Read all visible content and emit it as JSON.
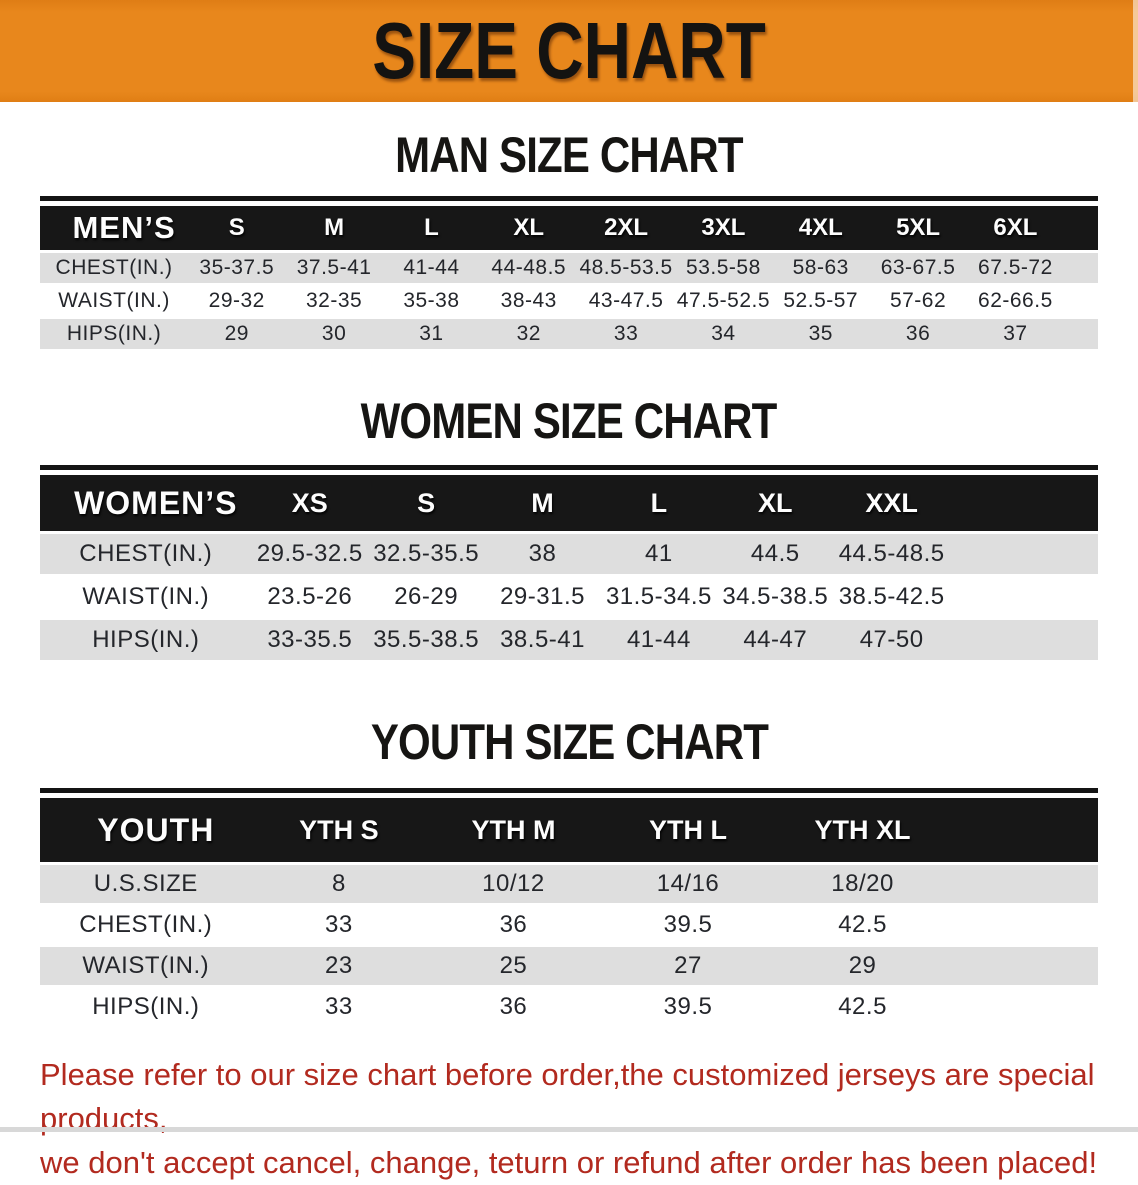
{
  "banner": {
    "title": "SIZE CHART",
    "bg_color": "#E8871C",
    "text_color": "#141311"
  },
  "sections": [
    {
      "heading": "MAN SIZE CHART",
      "table": {
        "label": "MEN’S",
        "columns": [
          "S",
          "M",
          "L",
          "XL",
          "2XL",
          "3XL",
          "4XL",
          "5XL",
          "6XL"
        ],
        "rows": [
          {
            "label": "CHEST(IN.)",
            "values": [
              "35-37.5",
              "37.5-41",
              "41-44",
              "44-48.5",
              "48.5-53.5",
              "53.5-58",
              "58-63",
              "63-67.5",
              "67.5-72"
            ]
          },
          {
            "label": "WAIST(IN.)",
            "values": [
              "29-32",
              "32-35",
              "35-38",
              "38-43",
              "43-47.5",
              "47.5-52.5",
              "52.5-57",
              "57-62",
              "62-66.5"
            ]
          },
          {
            "label": "HIPS(IN.)",
            "values": [
              "29",
              "30",
              "31",
              "32",
              "33",
              "34",
              "35",
              "36",
              "37"
            ]
          }
        ]
      }
    },
    {
      "heading": "WOMEN SIZE CHART",
      "table": {
        "label": "WOMEN’S",
        "columns": [
          "XS",
          "S",
          "M",
          "L",
          "XL",
          "XXL"
        ],
        "rows": [
          {
            "label": "CHEST(IN.)",
            "values": [
              "29.5-32.5",
              "32.5-35.5",
              "38",
              "41",
              "44.5",
              "44.5-48.5"
            ]
          },
          {
            "label": "WAIST(IN.)",
            "values": [
              "23.5-26",
              "26-29",
              "29-31.5",
              "31.5-34.5",
              "34.5-38.5",
              "38.5-42.5"
            ]
          },
          {
            "label": "HIPS(IN.)",
            "values": [
              "33-35.5",
              "35.5-38.5",
              "38.5-41",
              "41-44",
              "44-47",
              "47-50"
            ]
          }
        ]
      }
    },
    {
      "heading": "YOUTH SIZE CHART",
      "table": {
        "label": "YOUTH",
        "columns": [
          "YTH S",
          "YTH M",
          "YTH L",
          "YTH XL"
        ],
        "rows": [
          {
            "label": "U.S.SIZE",
            "values": [
              "8",
              "10/12",
              "14/16",
              "18/20"
            ]
          },
          {
            "label": "CHEST(IN.)",
            "values": [
              "33",
              "36",
              "39.5",
              "42.5"
            ]
          },
          {
            "label": "WAIST(IN.)",
            "values": [
              "23",
              "25",
              "27",
              "29"
            ]
          },
          {
            "label": "HIPS(IN.)",
            "values": [
              "33",
              "36",
              "39.5",
              "42.5"
            ]
          }
        ]
      }
    }
  ],
  "footer": {
    "line1": "Please refer to our size chart before order,the customized jerseys are special products,",
    "line2": "we don't accept cancel, change, teturn or refund after order has been placed!",
    "text_color": "#B22A1F"
  },
  "colors": {
    "table_header_bg": "#171717",
    "row_alt": "#DEDEDE",
    "row_base": "#FFFFFF"
  }
}
